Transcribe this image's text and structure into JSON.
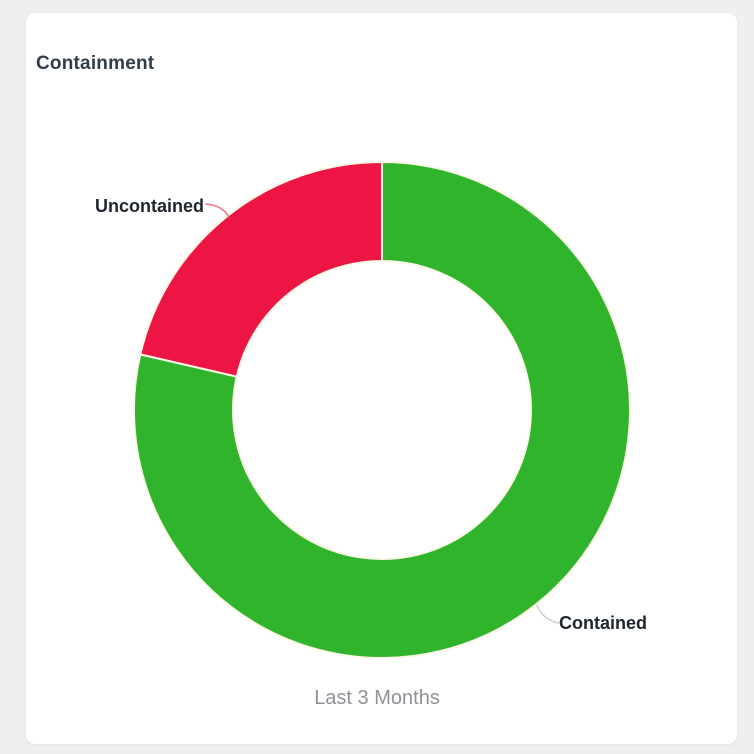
{
  "page": {
    "background_color": "#edeff1"
  },
  "card": {
    "title": "Containment",
    "subtitle": "Last 3 Months",
    "background_color": "#ffffff",
    "border_color": "#e7e9eb"
  },
  "chart_data": {
    "type": "pie",
    "variant": "donut",
    "title": "Containment",
    "period_label": "Last 3 Months",
    "direction": "clockwise",
    "start_angle_deg": 0,
    "inner_radius_ratio": 0.6,
    "legend": "none",
    "label_style": "outside-with-leader-lines",
    "slices": [
      {
        "label": "Contained",
        "fraction": 0.786,
        "percent_estimate": 78.6,
        "color": "#2fb42c"
      },
      {
        "label": "Uncontained",
        "fraction": 0.214,
        "percent_estimate": 21.4,
        "color": "#ed1543"
      }
    ]
  },
  "colors": {
    "title_text": "#313d4a",
    "slice_label_text": "#20262e",
    "subtitle_text": "#8d9298",
    "slice_divider": "#fbf7e6",
    "leader_contained": "#c8d4c9",
    "leader_uncontained": "#ef7186"
  }
}
